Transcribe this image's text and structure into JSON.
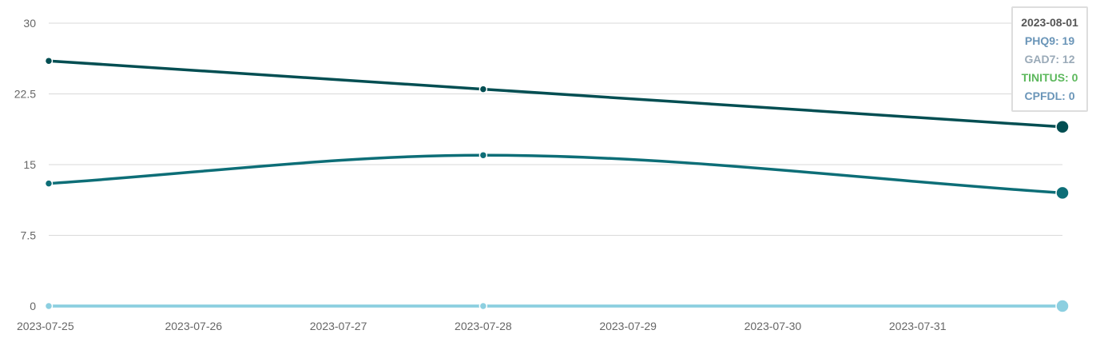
{
  "chart_data": {
    "type": "line",
    "categories": [
      "2023-07-25",
      "2023-07-28",
      "2023-08-01"
    ],
    "x_tick_labels": [
      "2023-07-25",
      "2023-07-26",
      "2023-07-27",
      "2023-07-28",
      "2023-07-29",
      "2023-07-30",
      "2023-07-31"
    ],
    "y_tick_labels": [
      "0",
      "7.5",
      "15",
      "22.5",
      "30"
    ],
    "ylim": [
      0,
      30
    ],
    "grid": true,
    "legend": "none",
    "series": [
      {
        "name": "PHQ9",
        "values": [
          26,
          23,
          19
        ],
        "color": "#024e52"
      },
      {
        "name": "GAD7",
        "values": [
          13,
          16,
          12
        ],
        "color": "#0d6e77"
      },
      {
        "name": "TINITUS",
        "values": [
          0,
          0,
          0
        ],
        "color": "#8ccfe0"
      },
      {
        "name": "CPFDL",
        "values": [
          0,
          0,
          0
        ],
        "color": "#8ccfe0"
      }
    ]
  },
  "tooltip": {
    "title": "2023-08-01",
    "rows": [
      {
        "label": "PHQ9: 19",
        "color": "#6a95b8"
      },
      {
        "label": "GAD7: 12",
        "color": "#9aaab8"
      },
      {
        "label": "TINITUS: 0",
        "color": "#5cb85c"
      },
      {
        "label": "CPFDL: 0",
        "color": "#6a95b8"
      }
    ]
  }
}
